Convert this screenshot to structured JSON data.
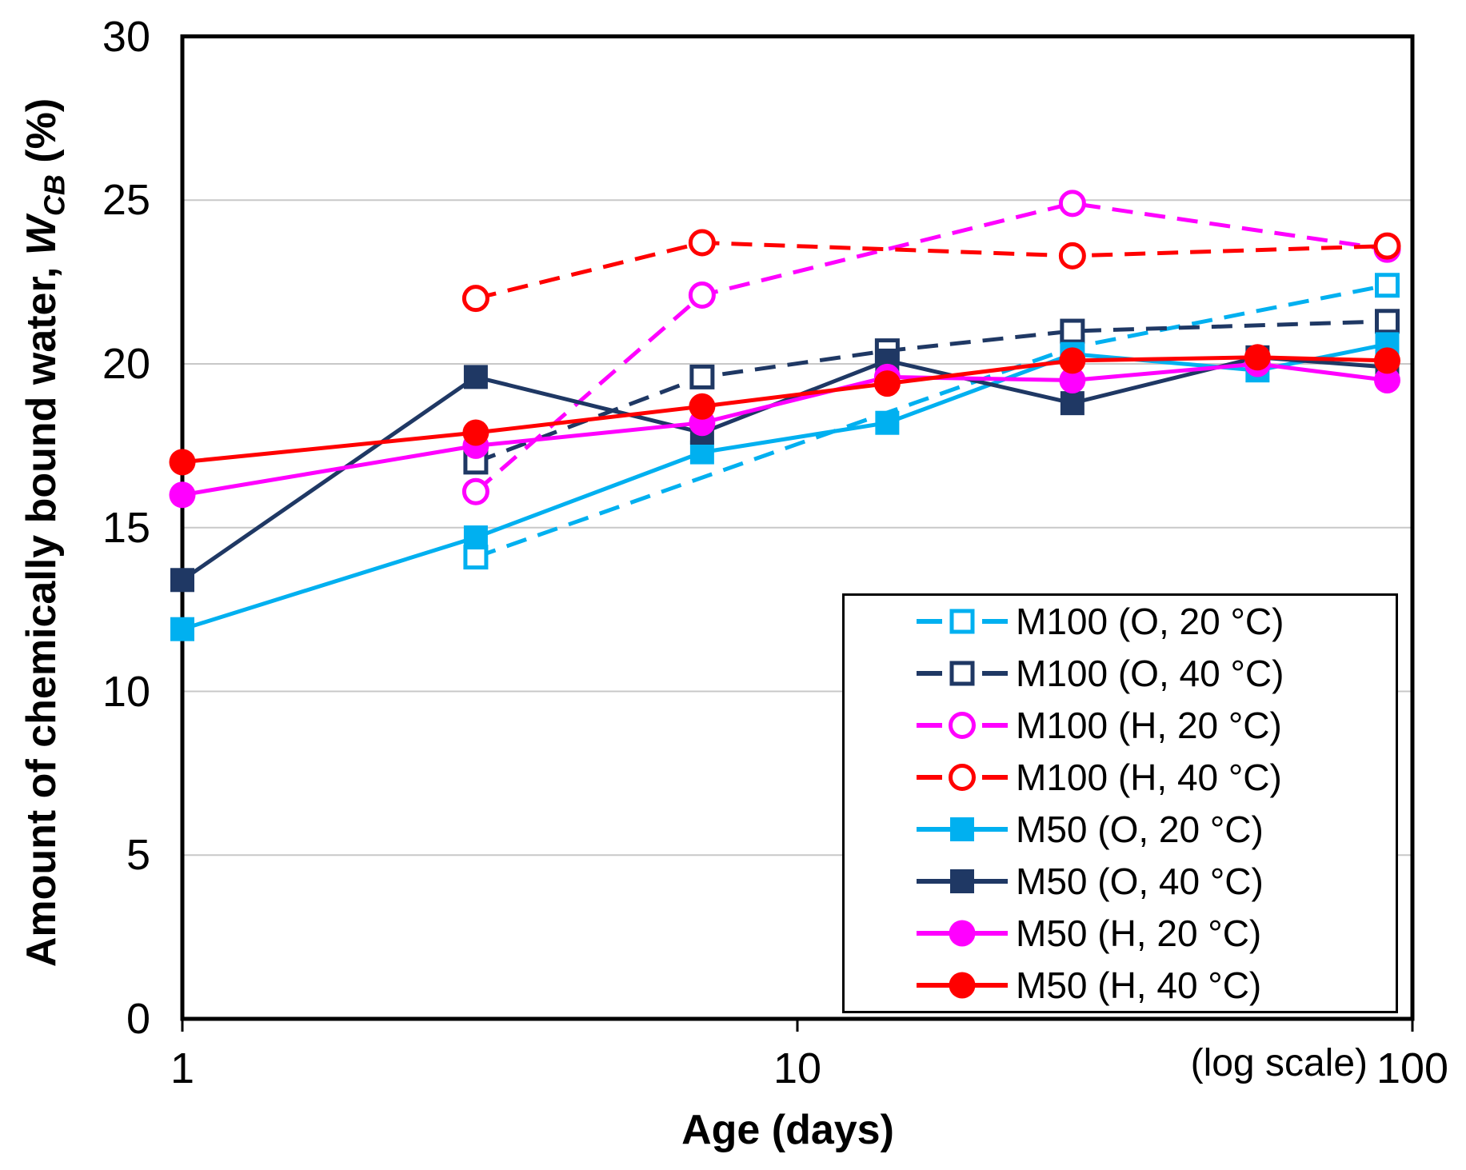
{
  "chart_data": {
    "type": "line",
    "title": "",
    "xlabel": "Age (days)",
    "x_scale_note": "(log scale)",
    "ylabel_prefix": "Amount of chemically bound water, ",
    "ylabel_symbol": "W",
    "ylabel_subscript": "CB",
    "ylabel_suffix": " (%)",
    "x_scale": "log",
    "xlim": [
      1,
      100
    ],
    "x_ticks": [
      1,
      10,
      100
    ],
    "ylim": [
      0,
      30
    ],
    "y_ticks": [
      0,
      5,
      10,
      15,
      20,
      25,
      30
    ],
    "grid": "horizontal",
    "legend_position": "inside-bottom-right",
    "axis_color": "#000000",
    "gridline_color": "#c8c8c8",
    "series": [
      {
        "name": "M100 (O, 20 °C)",
        "color": "#00B0F0",
        "dashed": true,
        "marker": "square-open",
        "points": [
          [
            3,
            14.1
          ],
          [
            28,
            20.5
          ],
          [
            91,
            22.4
          ]
        ]
      },
      {
        "name": "M100 (O, 40 °C)",
        "color": "#1F3864",
        "dashed": true,
        "marker": "square-open",
        "points": [
          [
            3,
            17.0
          ],
          [
            7,
            19.6
          ],
          [
            14,
            20.4
          ],
          [
            28,
            21.0
          ],
          [
            91,
            21.3
          ]
        ]
      },
      {
        "name": "M100 (H, 20 °C)",
        "color": "#FF00FF",
        "dashed": true,
        "marker": "circle-open",
        "points": [
          [
            3,
            16.1
          ],
          [
            7,
            22.1
          ],
          [
            28,
            24.9
          ],
          [
            91,
            23.5
          ]
        ]
      },
      {
        "name": "M100 (H, 40 °C)",
        "color": "#FF0000",
        "dashed": true,
        "marker": "circle-open",
        "points": [
          [
            3,
            22.0
          ],
          [
            7,
            23.7
          ],
          [
            28,
            23.3
          ],
          [
            91,
            23.6
          ]
        ]
      },
      {
        "name": "M50 (O, 20 °C)",
        "color": "#00B0F0",
        "dashed": false,
        "marker": "square",
        "points": [
          [
            1,
            11.9
          ],
          [
            3,
            14.7
          ],
          [
            7,
            17.3
          ],
          [
            14,
            18.2
          ],
          [
            28,
            20.3
          ],
          [
            56,
            19.8
          ],
          [
            91,
            20.6
          ]
        ]
      },
      {
        "name": "M50 (O, 40 °C)",
        "color": "#1F3864",
        "dashed": false,
        "marker": "square",
        "points": [
          [
            1,
            13.4
          ],
          [
            3,
            19.6
          ],
          [
            7,
            17.9
          ],
          [
            14,
            20.1
          ],
          [
            28,
            18.8
          ],
          [
            56,
            20.2
          ],
          [
            91,
            19.9
          ]
        ]
      },
      {
        "name": "M50 (H, 20 °C)",
        "color": "#FF00FF",
        "dashed": false,
        "marker": "circle",
        "points": [
          [
            1,
            16.0
          ],
          [
            3,
            17.5
          ],
          [
            7,
            18.2
          ],
          [
            14,
            19.6
          ],
          [
            28,
            19.5
          ],
          [
            56,
            20.0
          ],
          [
            91,
            19.5
          ]
        ]
      },
      {
        "name": "M50 (H, 40 °C)",
        "color": "#FF0000",
        "dashed": false,
        "marker": "circle",
        "points": [
          [
            1,
            17.0
          ],
          [
            3,
            17.9
          ],
          [
            7,
            18.7
          ],
          [
            14,
            19.4
          ],
          [
            28,
            20.1
          ],
          [
            56,
            20.2
          ],
          [
            91,
            20.1
          ]
        ]
      }
    ]
  }
}
